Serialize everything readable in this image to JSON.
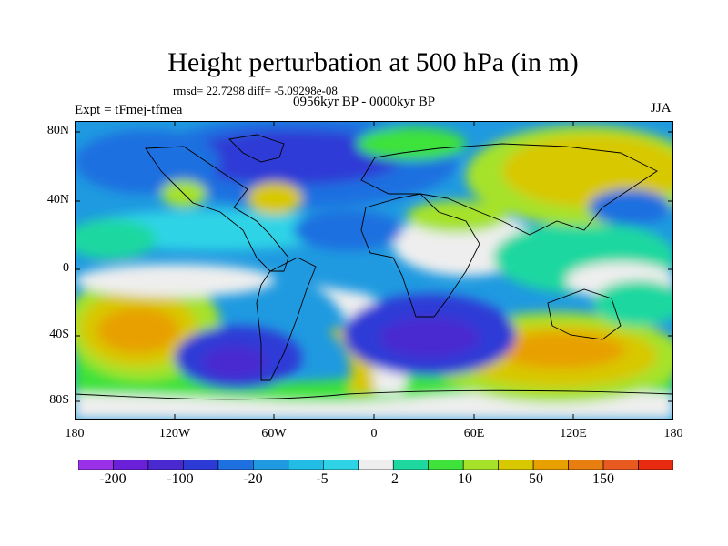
{
  "title": "Height perturbation at 500 hPa (in m)",
  "stats": "rmsd= 22.7298 diff= -5.09298e-08",
  "period": "0956kyr BP - 0000kyr BP",
  "experiment": "Expt = tFmej-tfmea",
  "season": "JJA",
  "lat_labels": [
    "80N",
    "40N",
    "0",
    "40S",
    "80S"
  ],
  "lon_labels": [
    "180",
    "120W",
    "60W",
    "0",
    "60E",
    "120E",
    "180"
  ],
  "colorbar": {
    "colors": [
      "#9a30e8",
      "#6a1fd8",
      "#4a2ad0",
      "#2d3bd6",
      "#1e6fe0",
      "#1f9ae0",
      "#22bde6",
      "#2ed4e6",
      "#eeeeee",
      "#1ed8a0",
      "#3ee23a",
      "#a6e22a",
      "#d8c800",
      "#e8a000",
      "#e87d10",
      "#e85a20",
      "#e82a10"
    ],
    "labels": [
      "-200",
      "-100",
      "-20",
      "-5",
      "2",
      "10",
      "50",
      "150"
    ]
  }
}
